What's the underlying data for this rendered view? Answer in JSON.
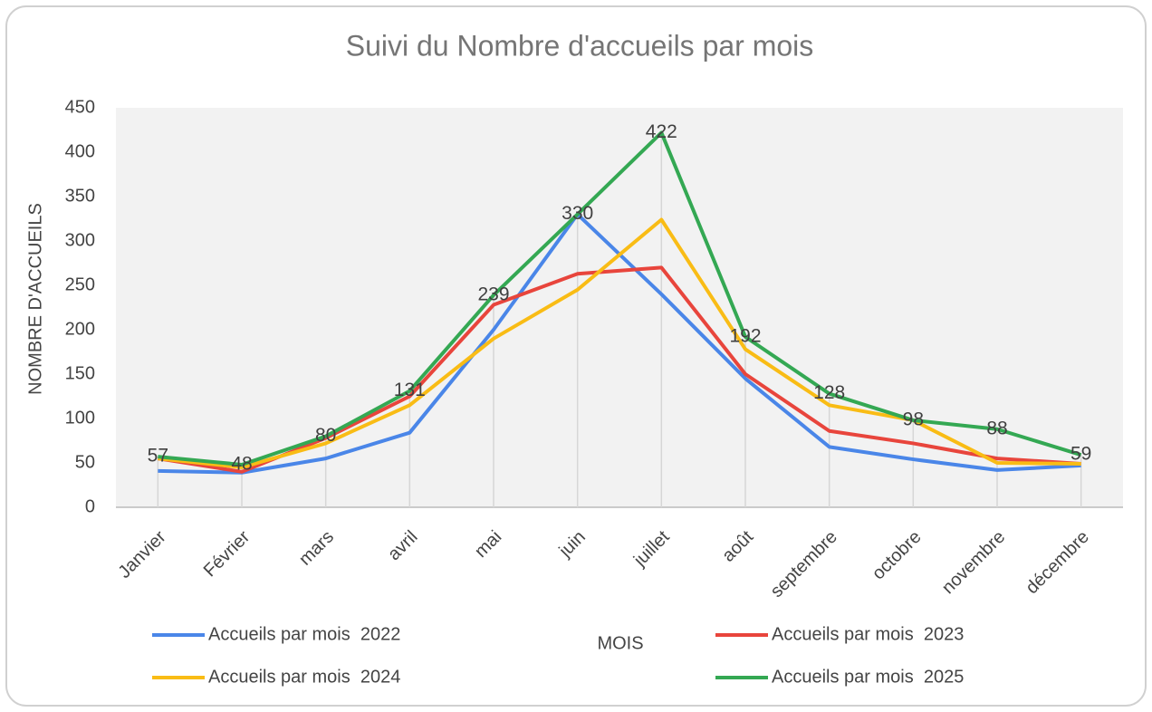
{
  "chart_data": {
    "type": "line",
    "title": "Suivi du Nombre d'accueils par mois",
    "x_label": "MOIS",
    "y_label": "NOMBRE D'ACCUEILS",
    "categories": [
      "Janvier",
      "Février",
      "mars",
      "avril",
      "mai",
      "juin",
      "juillet",
      "août",
      "septembre",
      "octobre",
      "novembre",
      "décembre"
    ],
    "series": [
      {
        "name": "Accueils par mois  2022",
        "color": "#4a86e8",
        "values": [
          41,
          39,
          55,
          84,
          200,
          330,
          240,
          145,
          68,
          54,
          42,
          47
        ]
      },
      {
        "name": "Accueils par mois  2023",
        "color": "#e8453c",
        "values": [
          55,
          40,
          78,
          125,
          228,
          263,
          270,
          150,
          86,
          72,
          55,
          49
        ]
      },
      {
        "name": "Accueils par mois  2024",
        "color": "#f9bc15",
        "values": [
          55,
          45,
          72,
          115,
          190,
          245,
          324,
          178,
          115,
          98,
          50,
          49
        ]
      },
      {
        "name": "Accueils par mois  2025",
        "color": "#34a853",
        "values": [
          57,
          48,
          80,
          131,
          239,
          330,
          422,
          192,
          128,
          98,
          88,
          59
        ],
        "data_labels": true
      }
    ],
    "ylim": [
      0,
      450
    ],
    "yticks": [
      0,
      50,
      100,
      150,
      200,
      250,
      300,
      350,
      400,
      450
    ],
    "drop_lines": true
  }
}
